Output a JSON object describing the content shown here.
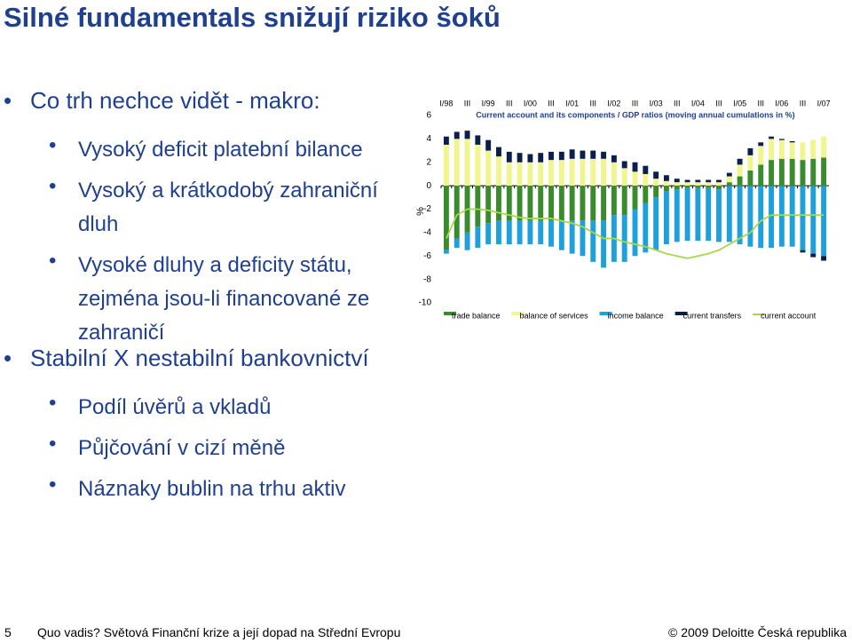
{
  "header": {
    "title": "Silné fundamentals snižují riziko šoků"
  },
  "bullets": [
    {
      "level": 1,
      "text": "Co trh nechce vidět - makro:"
    },
    {
      "level": 2,
      "text": "Vysoký deficit platební bilance"
    },
    {
      "level": 2,
      "text": "Vysoký a krátkodobý zahraniční dluh"
    },
    {
      "level": 2,
      "text": "Vysoké dluhy a deficity státu, zejména jsou-li financované ze zahraničí"
    },
    {
      "level": 1,
      "text": "Stabilní X nestabilní bankovnictví"
    },
    {
      "level": 2,
      "text": "Podíl úvěrů a vkladů"
    },
    {
      "level": 2,
      "text": "Půjčování v cizí měně"
    },
    {
      "level": 2,
      "text": "Náznaky bublin na trhu aktiv"
    }
  ],
  "footer": {
    "page": "5",
    "left": "Quo vadis? Světová Finanční krize a její dopad na Střední Evropu",
    "right": "© 2009 Deloitte Česká republika"
  },
  "chart_data": {
    "type": "bar",
    "title": "Current account and its components / GDP ratios (moving annual cumulations in %)",
    "y_label": "%",
    "categories": [
      "I/98",
      null,
      "III",
      null,
      "I/99",
      null,
      "III",
      null,
      "I/00",
      null,
      "III",
      null,
      "I/01",
      null,
      "III",
      null,
      "I/02",
      null,
      "III",
      null,
      "I/03",
      null,
      "III",
      null,
      "I/04",
      null,
      "III",
      null,
      "I/05",
      null,
      "III",
      null,
      "I/06",
      null,
      "III",
      null,
      "I/07"
    ],
    "ylim": [
      -10,
      6
    ],
    "yticks": [
      -10,
      -8,
      -6,
      -4,
      -2,
      0,
      2,
      4,
      6
    ],
    "series": [
      {
        "name": "trade balance",
        "color": "#3a8a2e",
        "type": "bar",
        "values": [
          -5.5,
          -4.5,
          -4,
          -3.5,
          -3.2,
          -3,
          -3,
          -3,
          -3,
          -3,
          -3,
          -3,
          -3,
          -3,
          -3,
          -3,
          -2.5,
          -2.5,
          -2,
          -1.5,
          -1,
          -0.5,
          -0.3,
          -0.2,
          -0.2,
          -0.2,
          -0.3,
          0.3,
          0.8,
          1.3,
          1.8,
          2.2,
          2.3,
          2.3,
          2.2,
          2.3,
          2.4
        ]
      },
      {
        "name": "balance of services",
        "color": "#f0f58c",
        "type": "bar",
        "values": [
          3.5,
          4,
          4,
          3.5,
          3,
          2.5,
          2,
          2,
          2,
          2,
          2.2,
          2.2,
          2.3,
          2.3,
          2.3,
          2.3,
          2,
          1.5,
          1.2,
          1,
          0.6,
          0.4,
          0.3,
          0.3,
          0.3,
          0.3,
          0.3,
          0.5,
          1,
          1.3,
          1.6,
          1.8,
          1.6,
          1.4,
          1.5,
          1.6,
          1.8
        ]
      },
      {
        "name": "income balance",
        "color": "#1ea0dc",
        "type": "bar",
        "values": [
          -0.3,
          -0.8,
          -1.5,
          -1.8,
          -1.8,
          -2,
          -2,
          -2,
          -2,
          -2,
          -2.2,
          -2.5,
          -2.8,
          -3,
          -3.5,
          -4,
          -4,
          -4,
          -4,
          -4.2,
          -4.5,
          -4.5,
          -4.5,
          -4.5,
          -4.5,
          -4.5,
          -4.5,
          -4.8,
          -5,
          -5.2,
          -5.3,
          -5.3,
          -5.2,
          -5.2,
          -5.5,
          -5.8,
          -6
        ]
      },
      {
        "name": "current transfers",
        "color": "#0a1f4e",
        "type": "bar",
        "values": [
          0.7,
          0.6,
          0.7,
          0.8,
          0.9,
          0.8,
          0.9,
          0.8,
          0.7,
          0.8,
          0.7,
          0.7,
          0.8,
          0.7,
          0.7,
          0.6,
          0.6,
          0.6,
          0.8,
          0.7,
          0.6,
          0.5,
          0.3,
          0.2,
          0.2,
          0.2,
          0.2,
          0.3,
          0.5,
          0.6,
          0.3,
          0.2,
          0.1,
          0.1,
          -0.2,
          -0.3,
          -0.4
        ]
      },
      {
        "name": "current account",
        "color": "#a8d84a",
        "type": "line",
        "values": [
          -4.5,
          -2.5,
          -2,
          -2,
          -2.1,
          -2.3,
          -2.5,
          -2.7,
          -2.8,
          -2.8,
          -2.8,
          -3,
          -3.2,
          -3.5,
          -4,
          -4.5,
          -4.5,
          -4.8,
          -5,
          -5.2,
          -5.5,
          -5.8,
          -6,
          -6.2,
          -6,
          -5.8,
          -5.5,
          -5,
          -4.5,
          -4,
          -3,
          -2.5,
          -2.5,
          -2.5,
          -2.5,
          -2.5,
          -2.5
        ]
      }
    ]
  }
}
